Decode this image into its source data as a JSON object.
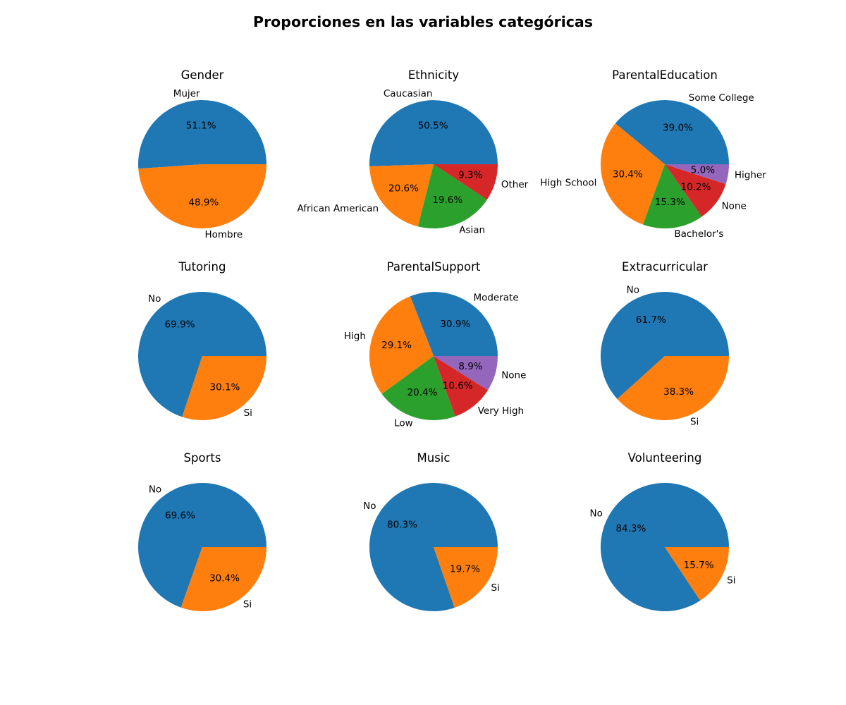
{
  "figure": {
    "title": "Proporciones en las variables categóricas"
  },
  "colors": {
    "palette": [
      "#1f77b4",
      "#ff7f0e",
      "#2ca02c",
      "#d62728",
      "#9467bd"
    ]
  },
  "chart_data": [
    {
      "type": "pie",
      "title": "Gender",
      "labels": [
        "Mujer",
        "Hombre"
      ],
      "values": [
        51.1,
        48.9
      ],
      "percent_labels": [
        "51.1%",
        "48.9%"
      ]
    },
    {
      "type": "pie",
      "title": "Ethnicity",
      "labels": [
        "Caucasian",
        "African American",
        "Asian",
        "Other"
      ],
      "values": [
        50.5,
        20.6,
        19.6,
        9.3
      ],
      "percent_labels": [
        "50.5%",
        "20.6%",
        "19.6%",
        "9.3%"
      ]
    },
    {
      "type": "pie",
      "title": "ParentalEducation",
      "labels": [
        "Some College",
        "High School",
        "Bachelor's",
        "None",
        "Higher"
      ],
      "values": [
        39.0,
        30.4,
        15.3,
        10.2,
        5.0
      ],
      "percent_labels": [
        "39.0%",
        "30.4%",
        "15.3%",
        "10.2%",
        "5.0%"
      ]
    },
    {
      "type": "pie",
      "title": "Tutoring",
      "labels": [
        "No",
        "Si"
      ],
      "values": [
        69.9,
        30.1
      ],
      "percent_labels": [
        "69.9%",
        "30.1%"
      ]
    },
    {
      "type": "pie",
      "title": "ParentalSupport",
      "labels": [
        "Moderate",
        "High",
        "Low",
        "Very High",
        "None"
      ],
      "values": [
        30.9,
        29.1,
        20.4,
        10.6,
        8.9
      ],
      "percent_labels": [
        "30.9%",
        "29.1%",
        "20.4%",
        "10.6%",
        "8.9%"
      ]
    },
    {
      "type": "pie",
      "title": "Extracurricular",
      "labels": [
        "No",
        "Si"
      ],
      "values": [
        61.7,
        38.3
      ],
      "percent_labels": [
        "61.7%",
        "38.3%"
      ]
    },
    {
      "type": "pie",
      "title": "Sports",
      "labels": [
        "No",
        "Si"
      ],
      "values": [
        69.6,
        30.4
      ],
      "percent_labels": [
        "69.6%",
        "30.4%"
      ]
    },
    {
      "type": "pie",
      "title": "Music",
      "labels": [
        "No",
        "Si"
      ],
      "values": [
        80.3,
        19.7
      ],
      "percent_labels": [
        "80.3%",
        "19.7%"
      ]
    },
    {
      "type": "pie",
      "title": "Volunteering",
      "labels": [
        "No",
        "Si"
      ],
      "values": [
        84.3,
        15.7
      ],
      "percent_labels": [
        "84.3%",
        "15.7%"
      ]
    }
  ]
}
